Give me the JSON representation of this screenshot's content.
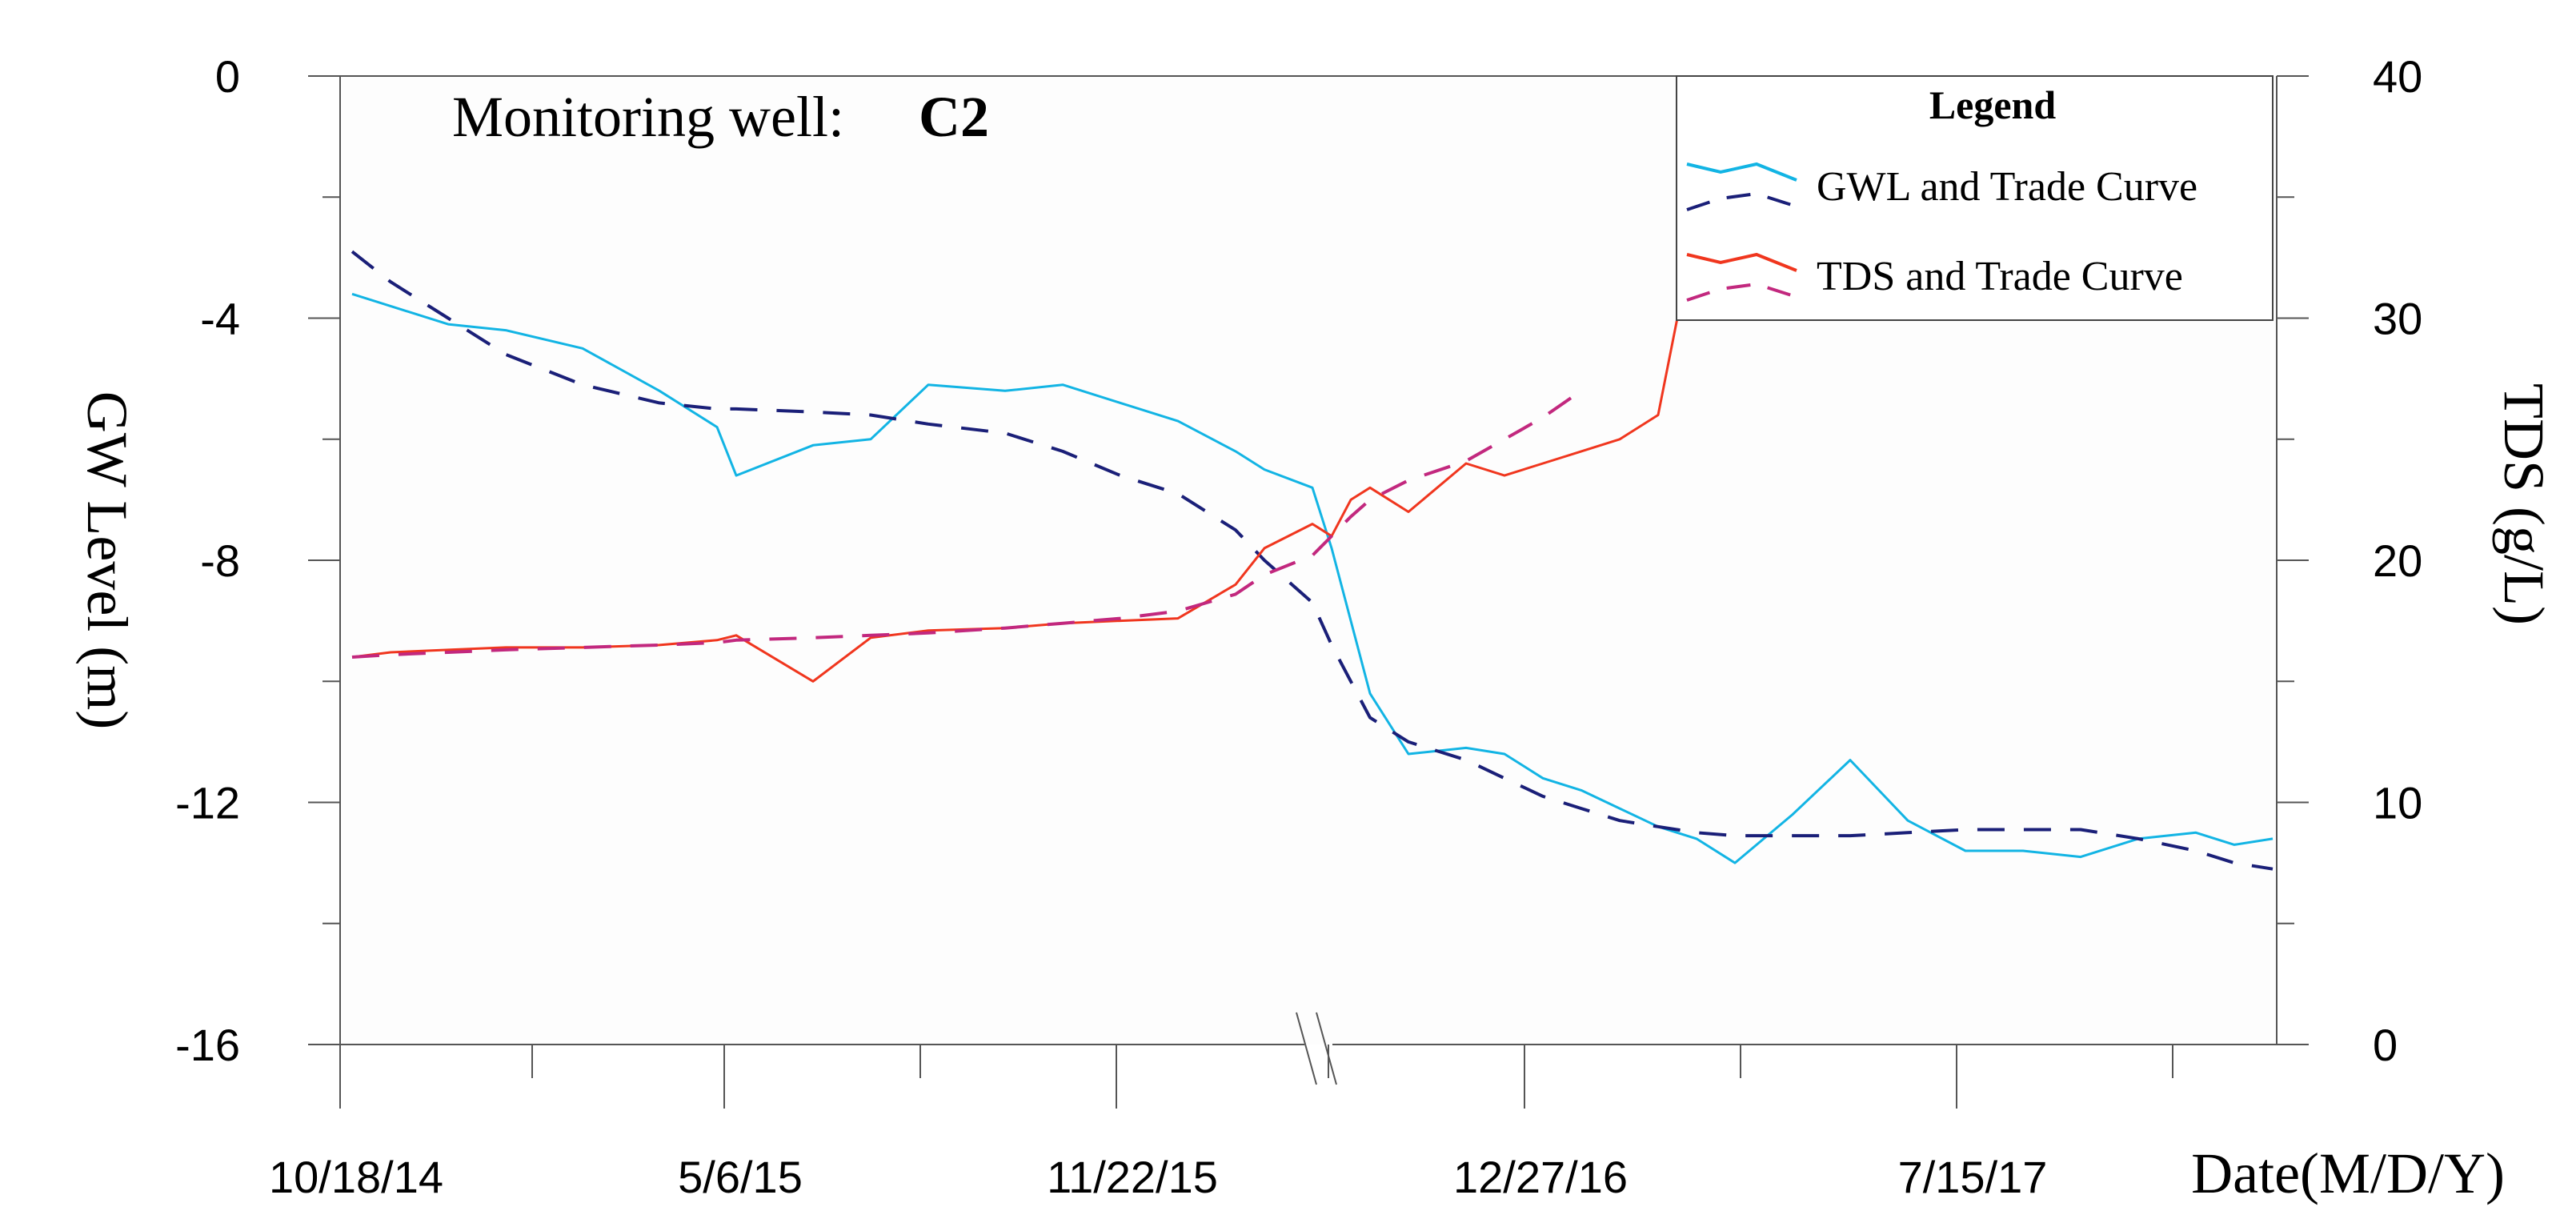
{
  "chart_data": {
    "type": "line",
    "annotation": {
      "prefix": "Monitoring well:",
      "well": "C2"
    },
    "y_left_label": "GW Level (m)",
    "y_right_label": "TDS (g/L)",
    "x_label": "Date(M/D/Y)",
    "y_left_ticks": [
      "0",
      "-4",
      "-8",
      "-12",
      "-16"
    ],
    "y_right_ticks": [
      "40",
      "30",
      "20",
      "10",
      "0"
    ],
    "x_tick_labels": [
      "10/18/14",
      "5/6/15",
      "11/22/15",
      "12/27/16",
      "7/15/17"
    ],
    "y_left_range": [
      -16,
      0
    ],
    "y_right_range": [
      0,
      40
    ],
    "axis_break": "between 11/22/15 and 12/27/16",
    "legend": {
      "title": "Legend",
      "entries": [
        "GWL and Trade Curve",
        "TDS and Trade Curve"
      ],
      "position": "top-right"
    },
    "colors": {
      "gwl": "#12b4e4",
      "gwl_trend": "#1a1f78",
      "tds": "#f0361e",
      "tds_trend": "#c2287e"
    },
    "x_positions": [
      0,
      0.02,
      0.05,
      0.08,
      0.12,
      0.16,
      0.19,
      0.2,
      0.24,
      0.27,
      0.3,
      0.34,
      0.37,
      0.4,
      0.43,
      0.46,
      0.475,
      0.5,
      0.51,
      0.52,
      0.53,
      0.55,
      0.58,
      0.6,
      0.62,
      0.64,
      0.66,
      0.68,
      0.7,
      0.72,
      0.75,
      0.78,
      0.81,
      0.84,
      0.87,
      0.9,
      0.93,
      0.96,
      0.98,
      1.0
    ],
    "series": [
      {
        "name": "GWL",
        "axis": "left",
        "values": [
          -3.6,
          -3.8,
          -4.1,
          -4.2,
          -4.5,
          -5.2,
          -5.8,
          -6.6,
          -6.1,
          -6.0,
          -5.1,
          -5.2,
          -5.1,
          -5.4,
          -5.7,
          -6.2,
          -6.5,
          -6.8,
          -7.8,
          -9.0,
          -10.2,
          -11.2,
          -11.1,
          -11.2,
          -11.6,
          -11.8,
          -12.1,
          -12.4,
          -12.6,
          -13.0,
          -12.2,
          -11.3,
          -12.3,
          -12.8,
          -12.8,
          -12.9,
          -12.6,
          -12.5,
          -12.7,
          -12.6
        ]
      },
      {
        "name": "GWL trend",
        "axis": "left",
        "values": [
          -2.9,
          -3.4,
          -4.0,
          -4.6,
          -5.1,
          -5.4,
          -5.5,
          -5.5,
          -5.55,
          -5.6,
          -5.75,
          -5.9,
          -6.2,
          -6.6,
          -6.9,
          -7.5,
          -8.0,
          -8.7,
          -9.4,
          -10.0,
          -10.6,
          -11.0,
          -11.3,
          -11.6,
          -11.9,
          -12.1,
          -12.3,
          -12.4,
          -12.5,
          -12.55,
          -12.55,
          -12.55,
          -12.5,
          -12.45,
          -12.45,
          -12.45,
          -12.6,
          -12.8,
          -13.0,
          -13.1
        ]
      },
      {
        "name": "TDS",
        "axis": "right",
        "values": [
          16.0,
          16.2,
          16.3,
          16.4,
          16.4,
          16.5,
          16.7,
          16.9,
          15.0,
          16.8,
          17.1,
          17.2,
          17.4,
          17.5,
          17.6,
          19.0,
          20.5,
          21.5,
          21.0,
          22.5,
          23.0,
          22.0,
          24.0,
          23.5,
          24.0,
          24.5,
          25.0,
          26.0,
          34.0,
          null,
          null,
          null,
          null,
          null,
          null,
          null,
          null,
          null,
          null,
          null
        ]
      },
      {
        "name": "TDS trend",
        "axis": "right",
        "values": [
          16.0,
          16.1,
          16.2,
          16.3,
          16.4,
          16.5,
          16.6,
          16.7,
          16.8,
          16.9,
          17.0,
          17.2,
          17.4,
          17.6,
          17.9,
          18.6,
          19.4,
          20.2,
          21.0,
          21.8,
          22.5,
          23.3,
          24.1,
          25.0,
          25.9,
          27.0,
          null,
          null,
          null,
          null,
          null,
          null,
          null,
          null,
          null,
          null,
          null,
          null,
          null,
          null
        ]
      }
    ]
  }
}
